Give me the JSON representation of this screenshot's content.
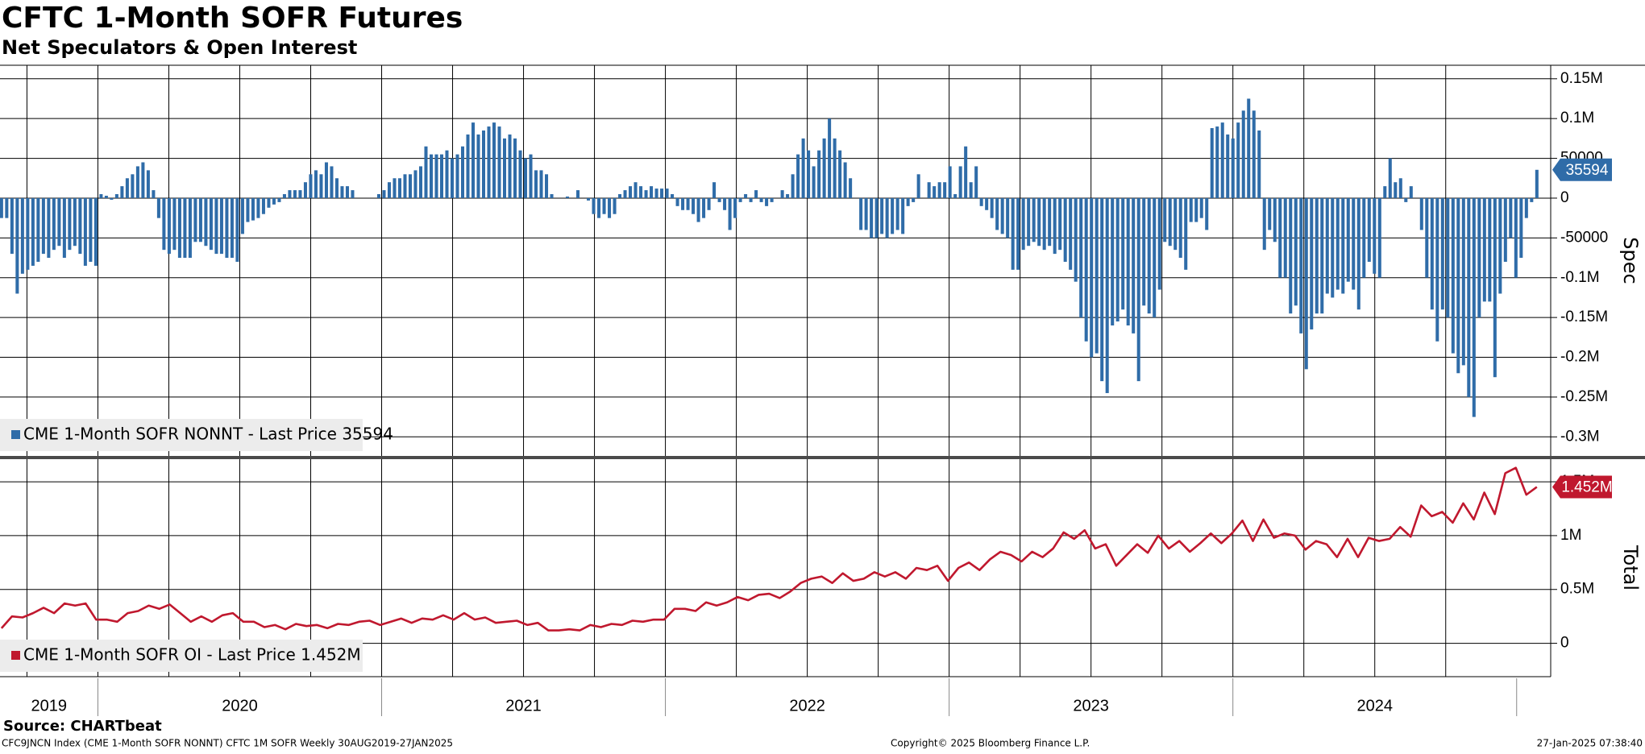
{
  "title": "CFTC 1-Month SOFR Futures",
  "subtitle": "Net Speculators & Open Interest",
  "source": "Source: CHARTbeat",
  "footer_left": "CFC9JNCN Index (CME 1-Month SOFR NONNT) CFTC 1M SOFR  Weekly 30AUG2019-27JAN2025",
  "footer_center": "Copyright© 2025 Bloomberg Finance L.P.",
  "footer_right": "27-Jan-2025 07:38:40",
  "xlim": [
    2019.655,
    2025.12
  ],
  "xticks": [
    {
      "value": 2019,
      "label": "2019"
    },
    {
      "value": 2020,
      "label": "2020"
    },
    {
      "value": 2021,
      "label": "2021"
    },
    {
      "value": 2022,
      "label": "2022"
    },
    {
      "value": 2023,
      "label": "2023"
    },
    {
      "value": 2024,
      "label": "2024"
    }
  ],
  "chart_data": [
    {
      "type": "bar",
      "y_label": "Spec",
      "color": "#2f6ca8",
      "name": "CME 1-Month SOFR NONNT - Last Price 35594",
      "last_label": "35594",
      "ylim": [
        -324000,
        167000
      ],
      "yticks": [
        {
          "value": 150000,
          "label": "0.15M"
        },
        {
          "value": 100000,
          "label": "0.1M"
        },
        50000,
        0,
        -50000,
        {
          "value": -100000,
          "label": "-0.1M"
        },
        {
          "value": -150000,
          "label": "-0.15M"
        },
        {
          "value": -200000,
          "label": "-0.2M"
        },
        {
          "value": -250000,
          "label": "-0.25M"
        },
        {
          "value": -300000,
          "label": "-0.3M"
        }
      ],
      "values": [
        -25000,
        -25000,
        -70000,
        -120000,
        -95000,
        -90000,
        -85000,
        -80000,
        -70000,
        -75000,
        -65000,
        -60000,
        -75000,
        -65000,
        -60000,
        -70000,
        -85000,
        -80000,
        -85000,
        5000,
        3000,
        -2000,
        5000,
        15000,
        25000,
        30000,
        40000,
        45000,
        35000,
        10000,
        -25000,
        -65000,
        -70000,
        -65000,
        -75000,
        -75000,
        -75000,
        -55000,
        -55000,
        -60000,
        -65000,
        -70000,
        -70000,
        -75000,
        -75000,
        -80000,
        -45000,
        -30000,
        -28000,
        -25000,
        -20000,
        -12000,
        -8000,
        -5000,
        5000,
        10000,
        10000,
        10000,
        20000,
        30000,
        35000,
        30000,
        45000,
        40000,
        25000,
        15000,
        15000,
        10000,
        0,
        0,
        0,
        0,
        5000,
        10000,
        20000,
        25000,
        25000,
        30000,
        30000,
        35000,
        40000,
        65000,
        55000,
        55000,
        55000,
        60000,
        50000,
        55000,
        65000,
        80000,
        95000,
        80000,
        85000,
        90000,
        95000,
        90000,
        75000,
        80000,
        75000,
        60000,
        50000,
        55000,
        35000,
        35000,
        30000,
        5000,
        0,
        0,
        2000,
        0,
        10000,
        0,
        -3000,
        -20000,
        -25000,
        -20000,
        -25000,
        -20000,
        5000,
        10000,
        15000,
        20000,
        15000,
        10000,
        15000,
        12000,
        12000,
        12000,
        5000,
        -10000,
        -15000,
        -15000,
        -20000,
        -30000,
        -25000,
        -15000,
        20000,
        -5000,
        -15000,
        -40000,
        -25000,
        -5000,
        5000,
        -5000,
        10000,
        -5000,
        -10000,
        -5000,
        0,
        10000,
        5000,
        30000,
        55000,
        75000,
        60000,
        40000,
        60000,
        75000,
        100000,
        75000,
        60000,
        45000,
        25000,
        0,
        -40000,
        -40000,
        -50000,
        -50000,
        -45000,
        -50000,
        -45000,
        -40000,
        -45000,
        -10000,
        -5000,
        30000,
        0,
        20000,
        15000,
        20000,
        20000,
        40000,
        5000,
        40000,
        65000,
        20000,
        40000,
        -10000,
        -15000,
        -25000,
        -40000,
        -45000,
        -50000,
        -90000,
        -90000,
        -65000,
        -60000,
        -55000,
        -60000,
        -65000,
        -60000,
        -70000,
        -65000,
        -80000,
        -90000,
        -105000,
        -150000,
        -180000,
        -200000,
        -195000,
        -230000,
        -245000,
        -160000,
        -155000,
        -140000,
        -160000,
        -170000,
        -230000,
        -135000,
        -145000,
        -150000,
        -115000,
        -55000,
        -60000,
        -65000,
        -75000,
        -90000,
        -30000,
        -30000,
        -25000,
        -40000,
        88000,
        90000,
        95000,
        80000,
        75000,
        95000,
        110000,
        125000,
        110000,
        85000,
        -65000,
        -40000,
        -55000,
        -100000,
        -100000,
        -145000,
        -135000,
        -170000,
        -215000,
        -165000,
        -145000,
        -145000,
        -120000,
        -125000,
        -115000,
        -120000,
        -105000,
        -115000,
        -140000,
        -100000,
        -80000,
        -95000,
        -100000,
        15000,
        50000,
        20000,
        25000,
        -5000,
        15000,
        0,
        -40000,
        -100000,
        -140000,
        -180000,
        -140000,
        -150000,
        -195000,
        -220000,
        -210000,
        -250000,
        -275000,
        -150000,
        -130000,
        -130000,
        -225000,
        -120000,
        -80000,
        -50000,
        -100000,
        -75000,
        -25000,
        -5000,
        35594
      ]
    },
    {
      "type": "line",
      "y_label": "Total",
      "color": "#c0182e",
      "name": "CME 1-Month SOFR OI - Last Price 1.452M",
      "last_label": "1.452M",
      "ylim": [
        -310000,
        1710000
      ],
      "yticks": [
        0,
        {
          "value": 500000,
          "label": "0.5M"
        },
        {
          "value": 1000000,
          "label": "1M"
        },
        {
          "value": 1500000,
          "label": "1.5M"
        }
      ],
      "values": [
        140000,
        250000,
        240000,
        280000,
        330000,
        280000,
        370000,
        350000,
        370000,
        220000,
        220000,
        200000,
        280000,
        300000,
        350000,
        320000,
        360000,
        280000,
        200000,
        250000,
        200000,
        260000,
        280000,
        200000,
        200000,
        150000,
        170000,
        130000,
        180000,
        160000,
        170000,
        140000,
        180000,
        170000,
        200000,
        210000,
        170000,
        200000,
        230000,
        190000,
        230000,
        220000,
        260000,
        220000,
        280000,
        220000,
        240000,
        190000,
        200000,
        210000,
        170000,
        190000,
        120000,
        120000,
        130000,
        120000,
        170000,
        150000,
        180000,
        170000,
        210000,
        200000,
        220000,
        220000,
        320000,
        320000,
        300000,
        380000,
        350000,
        380000,
        430000,
        400000,
        450000,
        460000,
        420000,
        480000,
        560000,
        600000,
        620000,
        560000,
        650000,
        580000,
        600000,
        660000,
        620000,
        660000,
        600000,
        700000,
        680000,
        720000,
        580000,
        700000,
        750000,
        680000,
        780000,
        850000,
        820000,
        760000,
        850000,
        800000,
        880000,
        1030000,
        970000,
        1050000,
        880000,
        920000,
        720000,
        820000,
        920000,
        840000,
        1000000,
        880000,
        950000,
        850000,
        930000,
        1020000,
        930000,
        1020000,
        1140000,
        950000,
        1150000,
        980000,
        1020000,
        1000000,
        870000,
        950000,
        920000,
        800000,
        970000,
        800000,
        980000,
        950000,
        970000,
        1080000,
        990000,
        1280000,
        1180000,
        1220000,
        1120000,
        1300000,
        1150000,
        1400000,
        1200000,
        1580000,
        1630000,
        1380000,
        1452000
      ]
    }
  ]
}
